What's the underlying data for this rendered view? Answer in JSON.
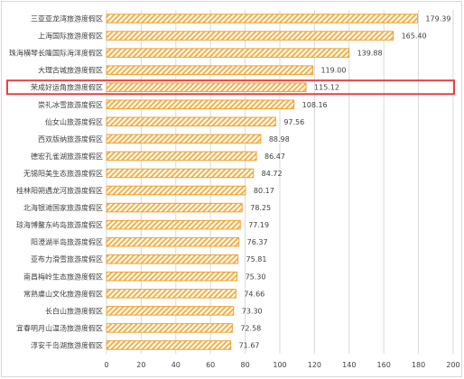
{
  "chart_data": {
    "type": "bar",
    "orientation": "horizontal",
    "categories": [
      "三亚亚龙湾旅游度假区",
      "上海国际旅游度假区",
      "珠海横琴长隆国际海洋度假区",
      "大理古城旅游度假区",
      "荣成好运角旅游度假区",
      "崇礼冰雪旅游度假区",
      "仙女山旅游度假区",
      "西双版纳旅游度假区",
      "德宏孔雀湖旅游度假区",
      "无锡阳美生态旅游度假区",
      "桂林阳朔遇龙河旅游度假区",
      "北海银滩国家旅游度假区",
      "琼海博鳌东屿岛旅游度假区",
      "阳澄湖半岛旅游度假区",
      "亚布力滑雪旅游度假区",
      "南昌梅岭生态旅游度假区",
      "常熟虞山文化旅游度假区",
      "长白山旅游度假区",
      "宜春明月山温汤旅游度假区",
      "淳安千岛湖旅游度假区"
    ],
    "values": [
      179.39,
      165.4,
      139.88,
      119.0,
      115.12,
      108.16,
      97.56,
      88.98,
      86.47,
      84.72,
      80.17,
      78.25,
      77.19,
      76.37,
      75.81,
      75.3,
      74.66,
      73.3,
      72.58,
      71.67
    ],
    "value_labels": [
      "179.39",
      "165.40",
      "139.88",
      "119.00",
      "115.12",
      "108.16",
      "97.56",
      "88.98",
      "86.47",
      "84.72",
      "80.17",
      "78.25",
      "77.19",
      "76.37",
      "75.81",
      "75.30",
      "74.66",
      "73.30",
      "72.58",
      "71.67"
    ],
    "xticks": [
      "0",
      "20",
      "40",
      "60",
      "80",
      "100",
      "120",
      "140",
      "160",
      "180",
      "200"
    ],
    "xlim": [
      0,
      200
    ],
    "highlighted_category": "荣成好运角旅游度假区",
    "grid": true,
    "colors": {
      "bar_stroke": "#f0a030",
      "bar_hatch": "#f5b14a",
      "highlight": "#e84040",
      "grid": "#d9d9d9"
    }
  }
}
